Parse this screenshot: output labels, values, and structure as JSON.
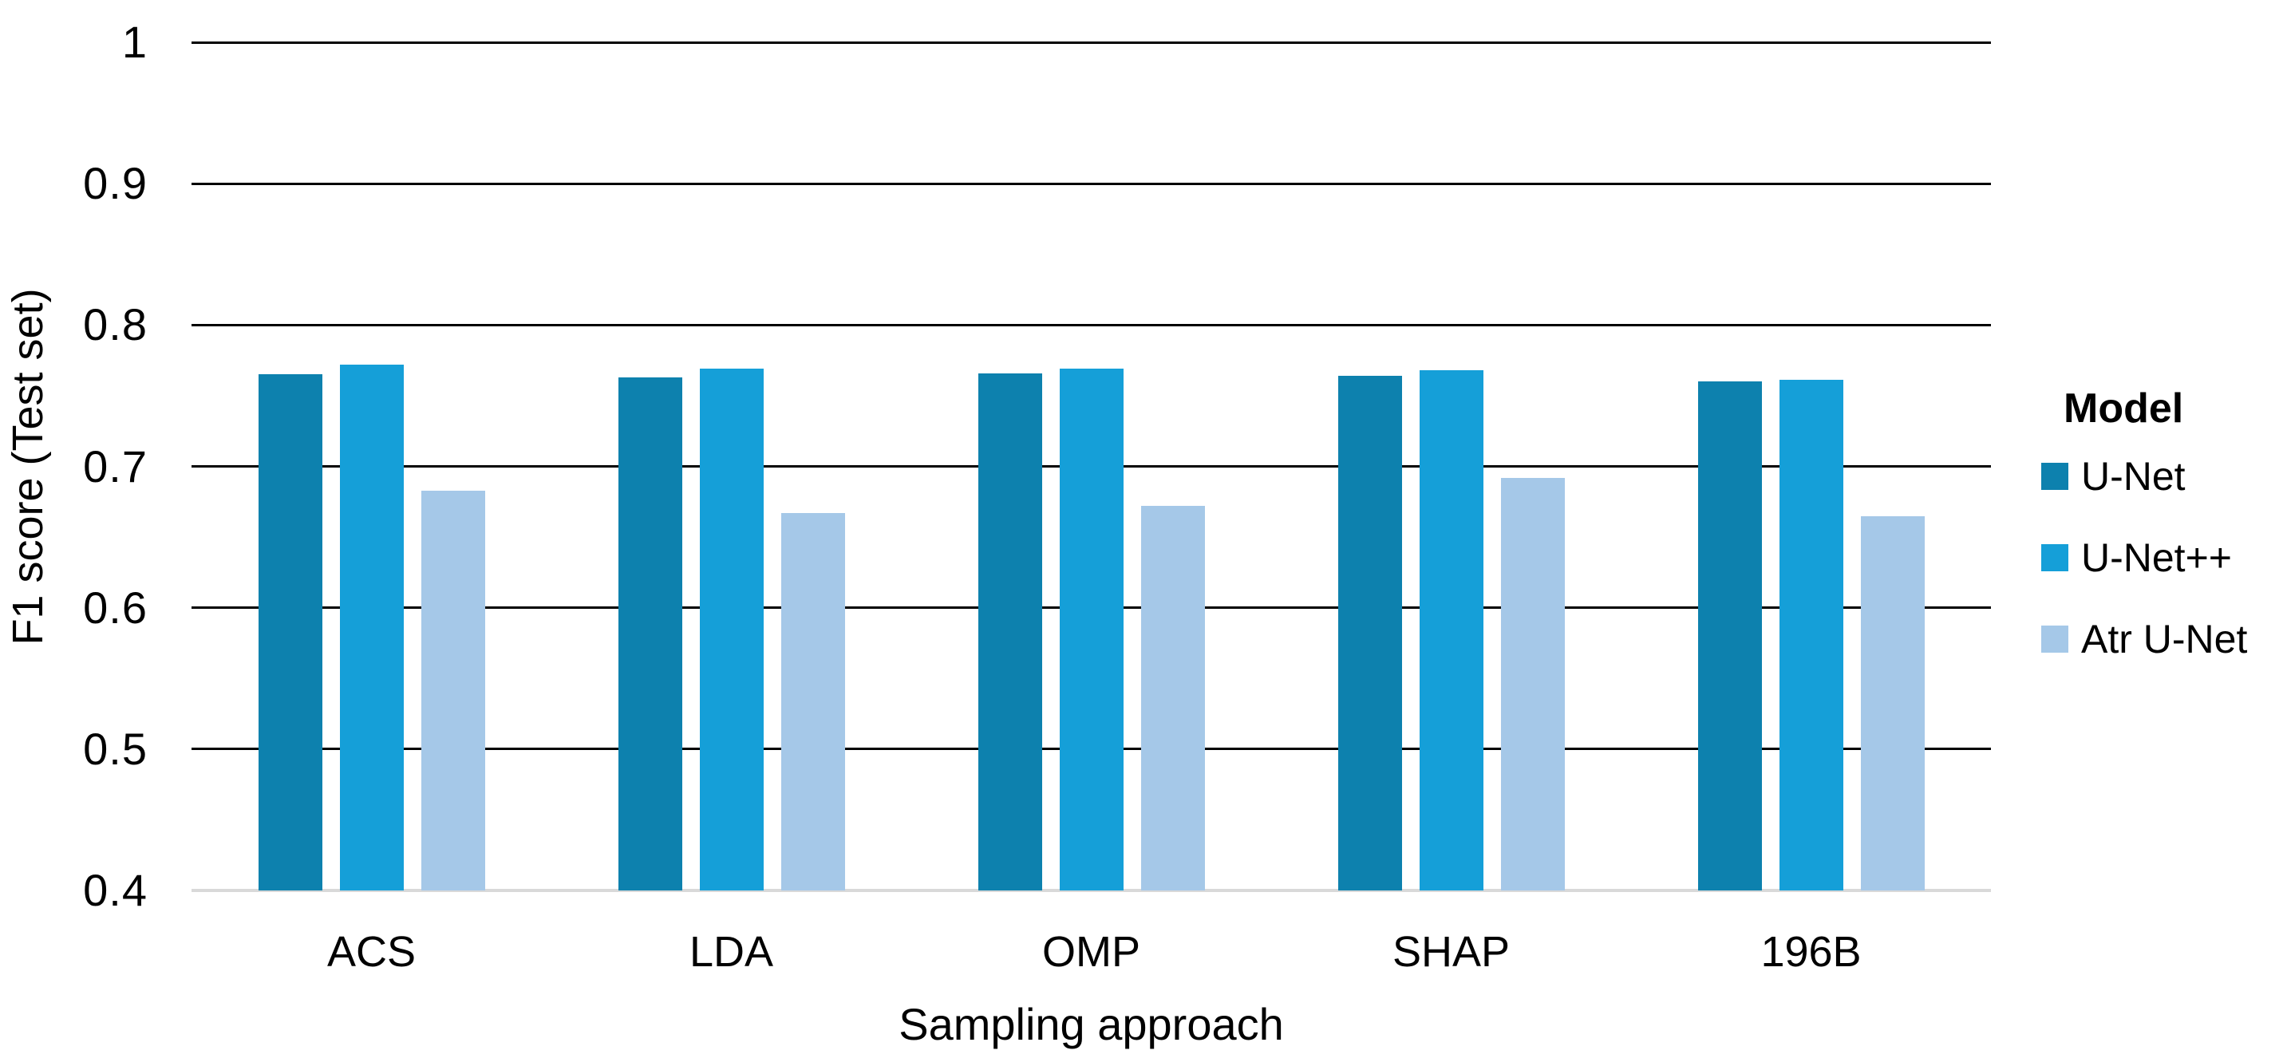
{
  "chart": {
    "y_axis_title": "F1 score (Test set)",
    "x_axis_title": "Sampling approach",
    "legend_title": "Model"
  },
  "chart_data": {
    "type": "bar",
    "title": "",
    "xlabel": "Sampling approach",
    "ylabel": "F1 score (Test set)",
    "categories": [
      "ACS",
      "LDA",
      "OMP",
      "SHAP",
      "196B"
    ],
    "series": [
      {
        "name": "U-Net",
        "color": "#0d81ae",
        "values": [
          0.765,
          0.763,
          0.766,
          0.764,
          0.76
        ]
      },
      {
        "name": "U-Net++",
        "color": "#159fd8",
        "values": [
          0.772,
          0.769,
          0.769,
          0.768,
          0.761
        ]
      },
      {
        "name": "Atr U-Net",
        "color": "#a5c8e8",
        "values": [
          0.683,
          0.667,
          0.672,
          0.692,
          0.665
        ]
      }
    ],
    "ylim": [
      0.4,
      1.0
    ],
    "ytick_labels": [
      "1",
      "0.9",
      "0.8",
      "0.7",
      "0.6",
      "0.5",
      "0.4"
    ],
    "ytick_values": [
      1.0,
      0.9,
      0.8,
      0.7,
      0.6,
      0.5,
      0.4
    ],
    "grid": "horizontal",
    "legend_position": "right",
    "colors": {
      "gridline": "#000000",
      "baseline": "#d9d9d9",
      "text": "#000000",
      "background": "#ffffff"
    }
  }
}
